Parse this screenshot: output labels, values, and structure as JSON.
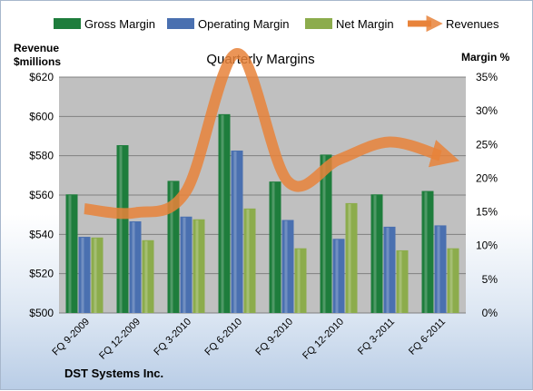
{
  "chart_data": {
    "type": "bar",
    "title": "Quarterly Margins",
    "footer": "DST Systems Inc.",
    "categories": [
      "FQ 9-2009",
      "FQ 12-2009",
      "FQ 3-2010",
      "FQ 6-2010",
      "FQ 9-2010",
      "FQ 12-2010",
      "FQ 3-2011",
      "FQ 6-2011"
    ],
    "left_axis": {
      "label_line1": "Revenue",
      "label_line2": "$millions",
      "range": [
        500,
        620
      ],
      "ticks": [
        "$500",
        "$520",
        "$540",
        "$560",
        "$580",
        "$600",
        "$620"
      ],
      "tick_values": [
        500,
        520,
        540,
        560,
        580,
        600,
        620
      ]
    },
    "right_axis": {
      "label": "Margin %",
      "range": [
        0,
        35
      ],
      "ticks": [
        "0%",
        "5%",
        "10%",
        "15%",
        "20%",
        "25%",
        "30%",
        "35%"
      ],
      "tick_values": [
        0,
        5,
        10,
        15,
        20,
        25,
        30,
        35
      ]
    },
    "series": [
      {
        "name": "Gross Margin",
        "axis": "right",
        "kind": "bar",
        "color": "#1e7d3c",
        "values": [
          17.6,
          24.9,
          19.6,
          29.5,
          19.5,
          23.5,
          17.6,
          18.1
        ]
      },
      {
        "name": "Operating Margin",
        "axis": "right",
        "kind": "bar",
        "color": "#4a70b0",
        "values": [
          11.3,
          13.6,
          14.3,
          24.1,
          13.8,
          11.0,
          12.8,
          13.0
        ]
      },
      {
        "name": "Net Margin",
        "axis": "right",
        "kind": "bar",
        "color": "#8cac4c",
        "values": [
          11.2,
          10.8,
          13.9,
          15.5,
          9.6,
          16.3,
          9.3,
          9.6
        ]
      },
      {
        "name": "Revenues",
        "axis": "left",
        "kind": "line",
        "color": "#e8833a",
        "values": [
          553,
          551,
          562,
          632,
          567,
          578,
          587,
          580
        ]
      }
    ],
    "legend": "top",
    "grid": true,
    "colors": {
      "plot_bg": "#c0c0c0",
      "grid": "#808080"
    }
  }
}
